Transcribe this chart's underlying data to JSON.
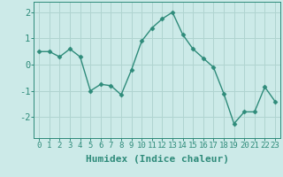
{
  "x": [
    0,
    1,
    2,
    3,
    4,
    5,
    6,
    7,
    8,
    9,
    10,
    11,
    12,
    13,
    14,
    15,
    16,
    17,
    18,
    19,
    20,
    21,
    22,
    23
  ],
  "y": [
    0.5,
    0.5,
    0.3,
    0.6,
    0.3,
    -1.0,
    -0.75,
    -0.8,
    -1.15,
    -0.2,
    0.9,
    1.4,
    1.75,
    2.0,
    1.15,
    0.6,
    0.25,
    -0.1,
    -1.1,
    -2.25,
    -1.8,
    -1.8,
    -0.85,
    -1.4
  ],
  "line_color": "#2e8b7a",
  "marker": "D",
  "marker_size": 2.5,
  "bg_color": "#cceae8",
  "grid_color": "#b0d4d0",
  "xlabel": "Humidex (Indice chaleur)",
  "ylim": [
    -2.8,
    2.4
  ],
  "xlim": [
    -0.5,
    23.5
  ],
  "yticks": [
    -2,
    -1,
    0,
    1,
    2
  ],
  "xticks": [
    0,
    1,
    2,
    3,
    4,
    5,
    6,
    7,
    8,
    9,
    10,
    11,
    12,
    13,
    14,
    15,
    16,
    17,
    18,
    19,
    20,
    21,
    22,
    23
  ],
  "tick_color": "#2e8b7a",
  "label_fontsize": 7.5,
  "tick_fontsize": 6.5,
  "xlabel_fontsize": 8
}
